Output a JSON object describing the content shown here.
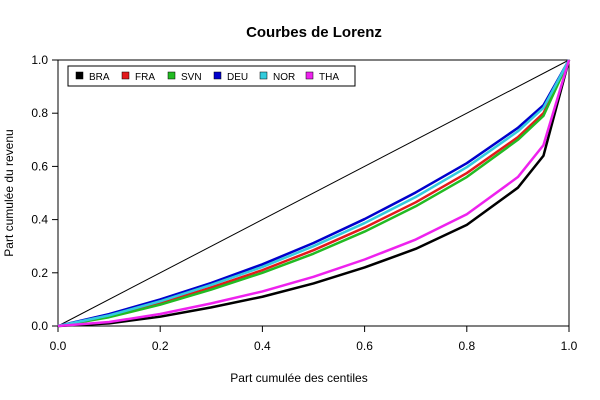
{
  "chart_data": {
    "type": "line",
    "title": "Courbes de Lorenz",
    "xlabel": "Part cumulée des centiles",
    "ylabel": "Part cumulée du revenu",
    "xlim": [
      0,
      1
    ],
    "ylim": [
      0,
      1
    ],
    "xticks": [
      "0.0",
      "0.2",
      "0.4",
      "0.6",
      "0.8",
      "1.0"
    ],
    "yticks": [
      "0.0",
      "0.2",
      "0.4",
      "0.6",
      "0.8",
      "1.0"
    ],
    "grid": false,
    "legend_position": "top-left",
    "equality_line": {
      "color": "#000000",
      "x": [
        0,
        1
      ],
      "y": [
        0,
        1
      ]
    },
    "x": [
      0,
      0.1,
      0.2,
      0.3,
      0.4,
      0.5,
      0.6,
      0.7,
      0.8,
      0.9,
      0.95,
      1.0
    ],
    "series": [
      {
        "name": "BRA",
        "color": "#000000",
        "y": [
          0,
          0.01,
          0.035,
          0.07,
          0.11,
          0.16,
          0.22,
          0.29,
          0.38,
          0.52,
          0.64,
          1.0
        ]
      },
      {
        "name": "FRA",
        "color": "#e31a1c",
        "y": [
          0,
          0.035,
          0.085,
          0.145,
          0.21,
          0.285,
          0.37,
          0.465,
          0.575,
          0.71,
          0.8,
          1.0
        ]
      },
      {
        "name": "SVN",
        "color": "#22bb22",
        "y": [
          0,
          0.033,
          0.08,
          0.137,
          0.2,
          0.272,
          0.355,
          0.45,
          0.56,
          0.7,
          0.79,
          1.0
        ]
      },
      {
        "name": "DEU",
        "color": "#0000cc",
        "y": [
          0,
          0.045,
          0.1,
          0.162,
          0.232,
          0.312,
          0.402,
          0.502,
          0.612,
          0.745,
          0.83,
          1.0
        ]
      },
      {
        "name": "NOR",
        "color": "#33ccdd",
        "y": [
          0,
          0.04,
          0.093,
          0.155,
          0.222,
          0.3,
          0.387,
          0.485,
          0.597,
          0.732,
          0.82,
          1.0
        ]
      },
      {
        "name": "THA",
        "color": "#ee22ee",
        "y": [
          0,
          0.015,
          0.045,
          0.085,
          0.13,
          0.185,
          0.25,
          0.325,
          0.42,
          0.56,
          0.68,
          1.0
        ]
      }
    ]
  }
}
